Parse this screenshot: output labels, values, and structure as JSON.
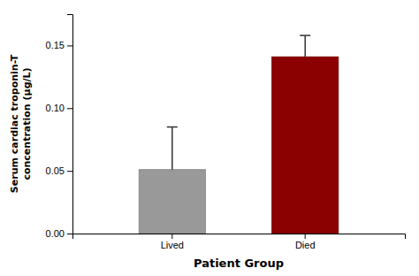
{
  "chart_data": {
    "type": "bar",
    "categories": [
      "Lived",
      "Died"
    ],
    "values": [
      0.051,
      0.141
    ],
    "errors_upper": [
      0.034,
      0.017
    ],
    "colors": [
      "#999999",
      "#8B0000"
    ],
    "xlabel": "Patient Group",
    "ylabel": "Serum cardiac troponin-T\nconcentration (μg/L)",
    "ylim": [
      0,
      0.175
    ],
    "yticks": [
      {
        "value": 0.0,
        "label": "0.00"
      },
      0.05,
      {
        "value": 0.1,
        "label": "0.10"
      },
      0.15
    ],
    "grid": false
  }
}
